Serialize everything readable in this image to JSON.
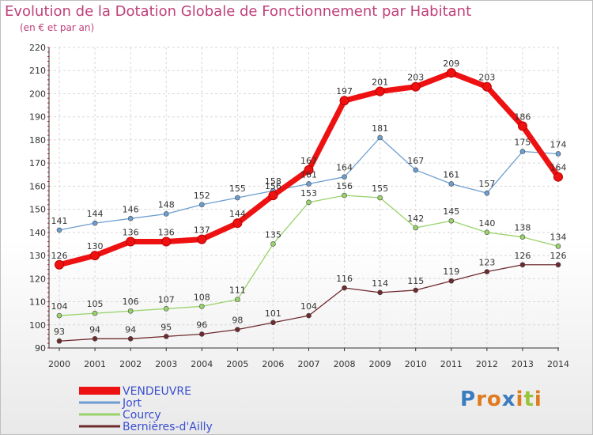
{
  "title": "Evolution de la Dotation Globale de Fonctionnement par Habitant",
  "subtitle": "(en € et par an)",
  "logo": {
    "letters": [
      "P",
      "r",
      "o",
      "x",
      "i",
      "t",
      "i"
    ],
    "colors": [
      "#3b7bbf",
      "#e07a1f",
      "#e07a1f",
      "#3b7bbf",
      "#e07a1f",
      "#9ac43a",
      "#e07a1f"
    ]
  },
  "chart_data": {
    "type": "line",
    "title": "Evolution de la Dotation Globale de Fonctionnement par Habitant",
    "ylabel": "(en € et par an)",
    "xlabel": "",
    "x": [
      "2000",
      "2001",
      "2002",
      "2003",
      "2004",
      "2005",
      "2006",
      "2007",
      "2008",
      "2009",
      "2010",
      "2011",
      "2012",
      "2013",
      "2014"
    ],
    "ylim": [
      90,
      220
    ],
    "yticks": [
      90,
      100,
      110,
      120,
      130,
      140,
      150,
      160,
      170,
      180,
      190,
      200,
      210,
      220
    ],
    "grid": true,
    "legend": "bottom-left",
    "series": [
      {
        "name": "VENDEUVRE",
        "color": "#ee1111",
        "width": "thick",
        "values": [
          126,
          130,
          136,
          136,
          137,
          144,
          156,
          167,
          197,
          201,
          203,
          209,
          203,
          186,
          164
        ]
      },
      {
        "name": "Jort",
        "color": "#6d9ed0",
        "values": [
          141,
          144,
          146,
          148,
          152,
          155,
          158,
          161,
          164,
          181,
          167,
          161,
          157,
          175,
          174
        ]
      },
      {
        "name": "Courcy",
        "color": "#99d36b",
        "values": [
          104,
          105,
          106,
          107,
          108,
          111,
          135,
          153,
          156,
          155,
          142,
          145,
          140,
          138,
          134
        ]
      },
      {
        "name": "Bernières-d'Ailly",
        "color": "#6e2a2e",
        "values": [
          93,
          94,
          94,
          95,
          96,
          98,
          101,
          104,
          116,
          114,
          115,
          119,
          123,
          126,
          126
        ]
      }
    ]
  }
}
